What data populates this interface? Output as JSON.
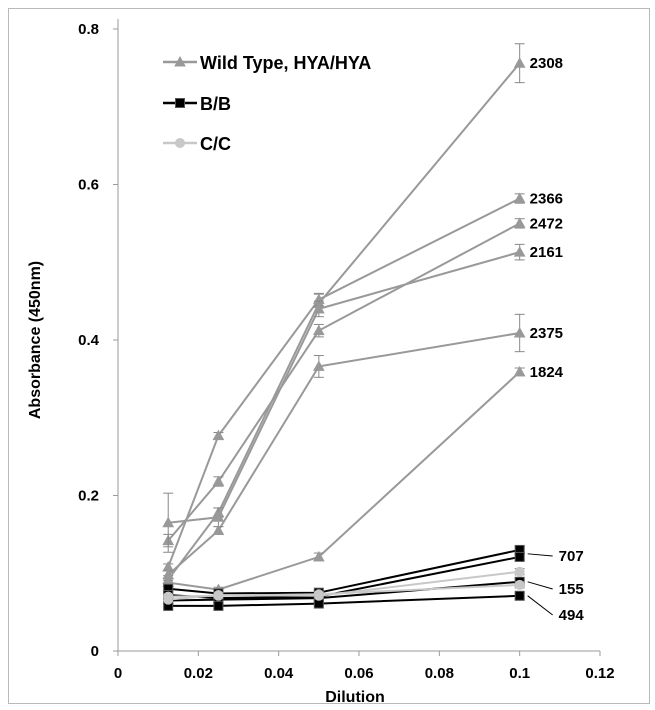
{
  "chart_data": {
    "type": "line",
    "title": "",
    "xlabel": "Dilution",
    "ylabel": "Absorbance (450nm)",
    "xlim": [
      0,
      0.12
    ],
    "ylim": [
      0,
      0.8
    ],
    "x_ticks": [
      "0",
      "0.02",
      "0.04",
      "0.06",
      "0.08",
      "0.1",
      "0.12"
    ],
    "y_ticks": [
      "0",
      "0.2",
      "0.4",
      "0.6",
      "0.8"
    ],
    "grid": false,
    "legend_position": "top-left",
    "legend": [
      {
        "name": "Wild Type, HYA/HYA",
        "marker": "triangle",
        "color": "#999999"
      },
      {
        "name": "B/B",
        "marker": "square",
        "color": "#000000"
      },
      {
        "name": "C/C",
        "marker": "circle",
        "color": "#c8c8c8"
      }
    ],
    "x": [
      0.0125,
      0.025,
      0.05,
      0.1
    ],
    "series": [
      {
        "name": "2308",
        "group": "Wild Type, HYA/HYA",
        "values": [
          0.092,
          0.178,
          0.447,
          0.756
        ],
        "err": [
          0.005,
          0.006,
          0.012,
          0.025
        ]
      },
      {
        "name": "2366",
        "group": "Wild Type, HYA/HYA",
        "values": [
          0.108,
          0.277,
          0.452,
          0.582
        ],
        "err": [
          0.004,
          0.004,
          0.008,
          0.006
        ]
      },
      {
        "name": "2472",
        "group": "Wild Type, HYA/HYA",
        "values": [
          0.142,
          0.218,
          0.412,
          0.55
        ],
        "err": [
          0.008,
          0.006,
          0.008,
          0.006
        ]
      },
      {
        "name": "2161",
        "group": "Wild Type, HYA/HYA",
        "values": [
          0.165,
          0.172,
          0.44,
          0.513
        ],
        "err": [
          0.038,
          0.012,
          0.01,
          0.01
        ]
      },
      {
        "name": "2375",
        "group": "Wild Type, HYA/HYA",
        "values": [
          0.098,
          0.155,
          0.366,
          0.409
        ],
        "err": [
          0.005,
          0.005,
          0.014,
          0.024
        ]
      },
      {
        "name": "1824",
        "group": "Wild Type, HYA/HYA",
        "values": [
          0.088,
          0.079,
          0.121,
          0.359
        ],
        "err": [
          0.003,
          0.003,
          0.005,
          0.005
        ]
      },
      {
        "name": "707",
        "group": "B/B",
        "values": [
          0.08,
          0.074,
          0.075,
          0.13
        ],
        "err": [
          0.003,
          0.003,
          0.003,
          0.004
        ]
      },
      {
        "name": "",
        "group": "B/B",
        "values": [
          0.072,
          0.068,
          0.07,
          0.121
        ],
        "err": [
          0.003,
          0.003,
          0.003,
          0.004
        ]
      },
      {
        "name": "155",
        "group": "B/B",
        "values": [
          0.065,
          0.066,
          0.068,
          0.089
        ],
        "err": [
          0.003,
          0.003,
          0.003,
          0.004
        ]
      },
      {
        "name": "494",
        "group": "B/B",
        "values": [
          0.058,
          0.058,
          0.061,
          0.071
        ],
        "err": [
          0.003,
          0.003,
          0.003,
          0.004
        ]
      },
      {
        "name": "",
        "group": "C/C",
        "values": [
          0.066,
          0.072,
          0.071,
          0.102
        ],
        "err": [
          0.003,
          0.003,
          0.003,
          0.004
        ]
      },
      {
        "name": "",
        "group": "C/C",
        "values": [
          0.07,
          0.071,
          0.073,
          0.085
        ],
        "err": [
          0.003,
          0.003,
          0.003,
          0.004
        ]
      }
    ],
    "annotations": [
      {
        "text": "2308",
        "x": 0.1,
        "y": 0.756
      },
      {
        "text": "2366",
        "x": 0.1,
        "y": 0.582
      },
      {
        "text": "2472",
        "x": 0.1,
        "y": 0.55
      },
      {
        "text": "2161",
        "x": 0.1,
        "y": 0.513
      },
      {
        "text": "2375",
        "x": 0.1,
        "y": 0.409
      },
      {
        "text": "1824",
        "x": 0.1,
        "y": 0.359
      },
      {
        "text": "707",
        "x": 0.1,
        "y": 0.125
      },
      {
        "text": "155",
        "x": 0.1,
        "y": 0.089
      },
      {
        "text": "494",
        "x": 0.1,
        "y": 0.071
      }
    ]
  }
}
